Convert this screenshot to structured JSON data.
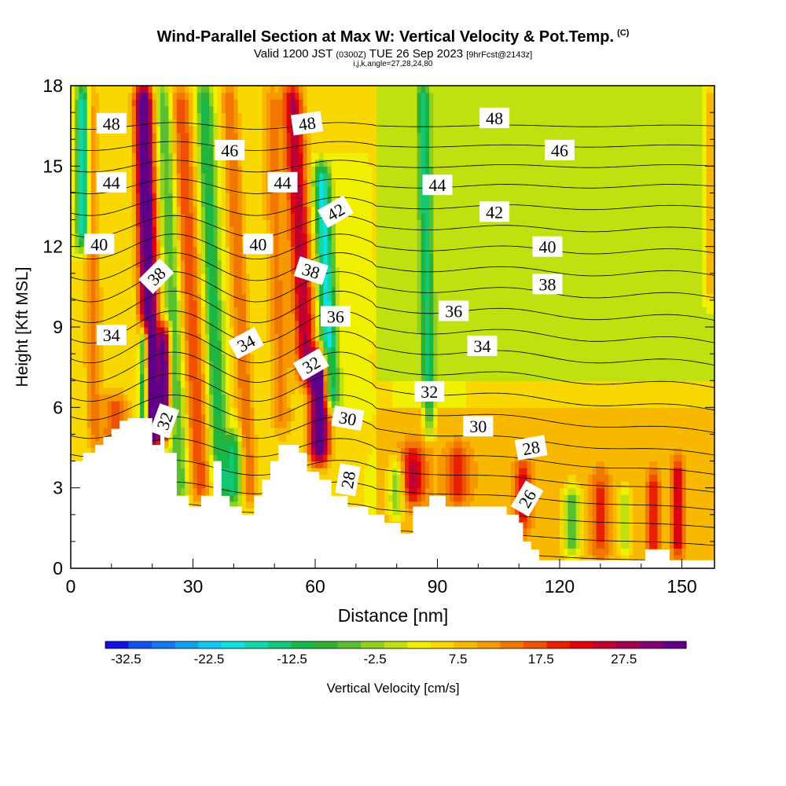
{
  "header": {
    "title": "Wind-Parallel Section at Max W: Vertical Velocity & Pot.Temp.",
    "title_suffix": "(C)",
    "valid_prefix": "Valid 1200 JST",
    "valid_utc": "(0300Z)",
    "valid_date": "TUE 26 Sep 2023",
    "forecast": "[9hrFcst@2143z]",
    "params": "i,j,k,angle=27,28,24,80"
  },
  "chart_data": {
    "type": "heatmap",
    "xlabel": "Distance [nm]",
    "ylabel": "Height [Kft MSL]",
    "xlim": [
      0,
      158
    ],
    "ylim": [
      0,
      18
    ],
    "x_ticks": [
      0,
      30,
      60,
      90,
      120,
      150
    ],
    "y_ticks": [
      0,
      3,
      6,
      9,
      12,
      15,
      18
    ],
    "colorbar": {
      "label": "Vertical Velocity [cm/s]",
      "min": -35,
      "max": 35,
      "step": 2.5,
      "tick_labels": [
        "-32.5",
        "-22.5",
        "-12.5",
        "-2.5",
        "7.5",
        "17.5",
        "27.5"
      ],
      "tick_values": [
        -32.5,
        -22.5,
        -12.5,
        -2.5,
        7.5,
        17.5,
        27.5
      ],
      "colors": [
        "#1010e0",
        "#1450f0",
        "#1478f0",
        "#10a0f0",
        "#10c8f0",
        "#10e0e0",
        "#10d8a8",
        "#10c878",
        "#18b848",
        "#30b030",
        "#58c030",
        "#90d020",
        "#c0e010",
        "#f0f000",
        "#f8d800",
        "#f8b800",
        "#f89800",
        "#f07800",
        "#f05000",
        "#e82000",
        "#e00010",
        "#c00030",
        "#a00050",
        "#800070",
        "#600088"
      ]
    },
    "background_w": 0,
    "updrafts": [
      {
        "x": 20,
        "z0": 4.5,
        "z1": 18,
        "w": 32,
        "tilt": -3,
        "width": 2.2
      },
      {
        "x": 23,
        "z0": 5.0,
        "z1": 9,
        "w": 28,
        "tilt": 0,
        "width": 1.5
      },
      {
        "x": 11,
        "z0": 4.0,
        "z1": 6.5,
        "w": 12,
        "tilt": 0,
        "width": 3
      },
      {
        "x": 32,
        "z0": 2.5,
        "z1": 18,
        "w": 12,
        "tilt": -6,
        "width": 2.5
      },
      {
        "x": 44,
        "z0": 2.5,
        "z1": 18,
        "w": 10,
        "tilt": -6,
        "width": 2
      },
      {
        "x": 61,
        "z0": 4.0,
        "z1": 8,
        "w": 32,
        "tilt": 0,
        "width": 2.5
      },
      {
        "x": 58,
        "z0": 7.0,
        "z1": 18,
        "w": 20,
        "tilt": -6,
        "width": 2.5
      },
      {
        "x": 84,
        "z0": 2.5,
        "z1": 4.5,
        "w": 15,
        "tilt": 0,
        "width": 3
      },
      {
        "x": 95,
        "z0": 2.5,
        "z1": 4.5,
        "w": 10,
        "tilt": 0,
        "width": 3
      },
      {
        "x": 111,
        "z0": 1.5,
        "z1": 4,
        "w": 12,
        "tilt": 0,
        "width": 2
      },
      {
        "x": 130,
        "z0": 0.5,
        "z1": 3.5,
        "w": 10,
        "tilt": 0,
        "width": 2
      },
      {
        "x": 143,
        "z0": 0.5,
        "z1": 3.5,
        "w": 12,
        "tilt": 0,
        "width": 1.5
      },
      {
        "x": 149,
        "z0": 0.5,
        "z1": 4,
        "w": 15,
        "tilt": 0,
        "width": 1.5
      },
      {
        "x": 157,
        "z0": 10,
        "z1": 18,
        "w": 8,
        "tilt": 0,
        "width": 1.5
      },
      {
        "x": 6,
        "z0": 4.5,
        "z1": 18,
        "w": 8,
        "tilt": -2,
        "width": 2
      },
      {
        "x": 52,
        "z0": 5.0,
        "z1": 18,
        "w": 8,
        "tilt": -4,
        "width": 2.5
      }
    ],
    "downdrafts": [
      {
        "x": 18,
        "z0": 5.0,
        "z1": 9,
        "w": -28,
        "tilt": 0,
        "width": 1.2
      },
      {
        "x": 3,
        "z0": 12,
        "z1": 18,
        "w": -24,
        "tilt": 0,
        "width": 1.5
      },
      {
        "x": 27,
        "z0": 2.5,
        "z1": 18,
        "w": -10,
        "tilt": -5,
        "width": 2
      },
      {
        "x": 37,
        "z0": 2.5,
        "z1": 18,
        "w": -14,
        "tilt": -5,
        "width": 2
      },
      {
        "x": 64,
        "z0": 6.0,
        "z1": 15,
        "w": -22,
        "tilt": -5,
        "width": 2
      },
      {
        "x": 88,
        "z0": 5.0,
        "z1": 18,
        "w": -14,
        "tilt": -2,
        "width": 1.5
      },
      {
        "x": 80,
        "z0": 2.0,
        "z1": 4,
        "w": -12,
        "tilt": 0,
        "width": 2
      },
      {
        "x": 123,
        "z0": 0.5,
        "z1": 3,
        "w": -14,
        "tilt": 0,
        "width": 2
      },
      {
        "x": 136,
        "z0": 0.5,
        "z1": 3,
        "w": -10,
        "tilt": 0,
        "width": 1.5
      },
      {
        "x": 40,
        "z0": 2.5,
        "z1": 5,
        "w": -16,
        "tilt": 0,
        "width": 2
      }
    ],
    "terrain": [
      [
        0,
        4
      ],
      [
        3,
        4
      ],
      [
        3,
        4.3
      ],
      [
        6,
        4.3
      ],
      [
        6,
        4.6
      ],
      [
        8,
        4.6
      ],
      [
        8,
        4.9
      ],
      [
        10,
        4.9
      ],
      [
        10,
        5.2
      ],
      [
        12,
        5.2
      ],
      [
        12,
        5.5
      ],
      [
        14,
        5.5
      ],
      [
        14,
        5.6
      ],
      [
        20,
        5.6
      ],
      [
        20,
        4.6
      ],
      [
        22,
        4.6
      ],
      [
        22,
        5.0
      ],
      [
        23,
        5.0
      ],
      [
        23,
        4.3
      ],
      [
        26,
        4.3
      ],
      [
        26,
        2.7
      ],
      [
        29,
        2.7
      ],
      [
        29,
        2.3
      ],
      [
        32,
        2.3
      ],
      [
        32,
        2.7
      ],
      [
        35,
        2.7
      ],
      [
        35,
        4.0
      ],
      [
        37,
        4.0
      ],
      [
        37,
        2.7
      ],
      [
        39,
        2.7
      ],
      [
        39,
        2.3
      ],
      [
        42,
        2.3
      ],
      [
        42,
        2.0
      ],
      [
        45,
        2.0
      ],
      [
        45,
        2.7
      ],
      [
        47,
        2.7
      ],
      [
        47,
        3.3
      ],
      [
        49,
        3.3
      ],
      [
        49,
        4.0
      ],
      [
        51,
        4.0
      ],
      [
        51,
        4.6
      ],
      [
        56,
        4.6
      ],
      [
        56,
        4.3
      ],
      [
        58,
        4.3
      ],
      [
        58,
        3.6
      ],
      [
        61,
        3.6
      ],
      [
        61,
        3.3
      ],
      [
        64,
        3.3
      ],
      [
        64,
        2.7
      ],
      [
        68,
        2.7
      ],
      [
        68,
        2.3
      ],
      [
        73,
        2.3
      ],
      [
        73,
        2.0
      ],
      [
        77,
        2.0
      ],
      [
        77,
        1.7
      ],
      [
        81,
        1.7
      ],
      [
        81,
        1.3
      ],
      [
        84,
        1.3
      ],
      [
        84,
        2.3
      ],
      [
        88,
        2.3
      ],
      [
        88,
        2.7
      ],
      [
        92,
        2.7
      ],
      [
        92,
        2.3
      ],
      [
        97,
        2.3
      ],
      [
        97,
        2.3
      ],
      [
        103,
        2.3
      ],
      [
        103,
        2.3
      ],
      [
        107,
        2.3
      ],
      [
        107,
        2.0
      ],
      [
        110,
        2.0
      ],
      [
        110,
        1.7
      ],
      [
        111,
        1.7
      ],
      [
        111,
        1.0
      ],
      [
        113,
        1.0
      ],
      [
        113,
        0.7
      ],
      [
        115,
        0.7
      ],
      [
        115,
        0.3
      ],
      [
        117,
        0.3
      ],
      [
        117,
        0.3
      ],
      [
        141,
        0.3
      ],
      [
        141,
        0.7
      ],
      [
        147,
        0.7
      ],
      [
        147,
        0.3
      ],
      [
        158,
        0.3
      ]
    ],
    "theta_labels": [
      {
        "text": "48",
        "x": 10,
        "z": 16.6,
        "rot": 0
      },
      {
        "text": "46",
        "x": 39,
        "z": 15.6,
        "rot": 0
      },
      {
        "text": "48",
        "x": 58,
        "z": 16.6,
        "rot": -8
      },
      {
        "text": "48",
        "x": 104,
        "z": 16.8,
        "rot": 0
      },
      {
        "text": "46",
        "x": 120,
        "z": 15.6,
        "rot": 0
      },
      {
        "text": "44",
        "x": 10,
        "z": 14.4,
        "rot": 0
      },
      {
        "text": "44",
        "x": 52,
        "z": 14.4,
        "rot": 0
      },
      {
        "text": "44",
        "x": 90,
        "z": 14.3,
        "rot": 0
      },
      {
        "text": "42",
        "x": 65,
        "z": 13.3,
        "rot": -30
      },
      {
        "text": "42",
        "x": 104,
        "z": 13.3,
        "rot": 0
      },
      {
        "text": "40",
        "x": 7,
        "z": 12.1,
        "rot": 0
      },
      {
        "text": "40",
        "x": 46,
        "z": 12.1,
        "rot": 0
      },
      {
        "text": "40",
        "x": 117,
        "z": 12.0,
        "rot": 0
      },
      {
        "text": "38",
        "x": 21,
        "z": 10.9,
        "rot": -45
      },
      {
        "text": "38",
        "x": 59,
        "z": 11.1,
        "rot": 18
      },
      {
        "text": "38",
        "x": 117,
        "z": 10.6,
        "rot": 0
      },
      {
        "text": "36",
        "x": 65,
        "z": 9.4,
        "rot": 0
      },
      {
        "text": "36",
        "x": 94,
        "z": 9.6,
        "rot": 0
      },
      {
        "text": "34",
        "x": 10,
        "z": 8.7,
        "rot": 0
      },
      {
        "text": "34",
        "x": 43,
        "z": 8.4,
        "rot": -28
      },
      {
        "text": "34",
        "x": 101,
        "z": 8.3,
        "rot": 0
      },
      {
        "text": "32",
        "x": 59,
        "z": 7.6,
        "rot": -30
      },
      {
        "text": "32",
        "x": 88,
        "z": 6.6,
        "rot": 0
      },
      {
        "text": "32",
        "x": 23,
        "z": 5.5,
        "rot": -70
      },
      {
        "text": "30",
        "x": 68,
        "z": 5.6,
        "rot": 10
      },
      {
        "text": "30",
        "x": 100,
        "z": 5.3,
        "rot": 0
      },
      {
        "text": "28",
        "x": 113,
        "z": 4.5,
        "rot": -10
      },
      {
        "text": "28",
        "x": 68,
        "z": 3.3,
        "rot": -80
      },
      {
        "text": "26",
        "x": 112,
        "z": 2.6,
        "rot": -60
      }
    ],
    "theta_levels": [
      26,
      27,
      28,
      29,
      30,
      31,
      32,
      33,
      34,
      35,
      36,
      37,
      38,
      39,
      40,
      41,
      42,
      43,
      44,
      45,
      46,
      47,
      48,
      49
    ]
  }
}
